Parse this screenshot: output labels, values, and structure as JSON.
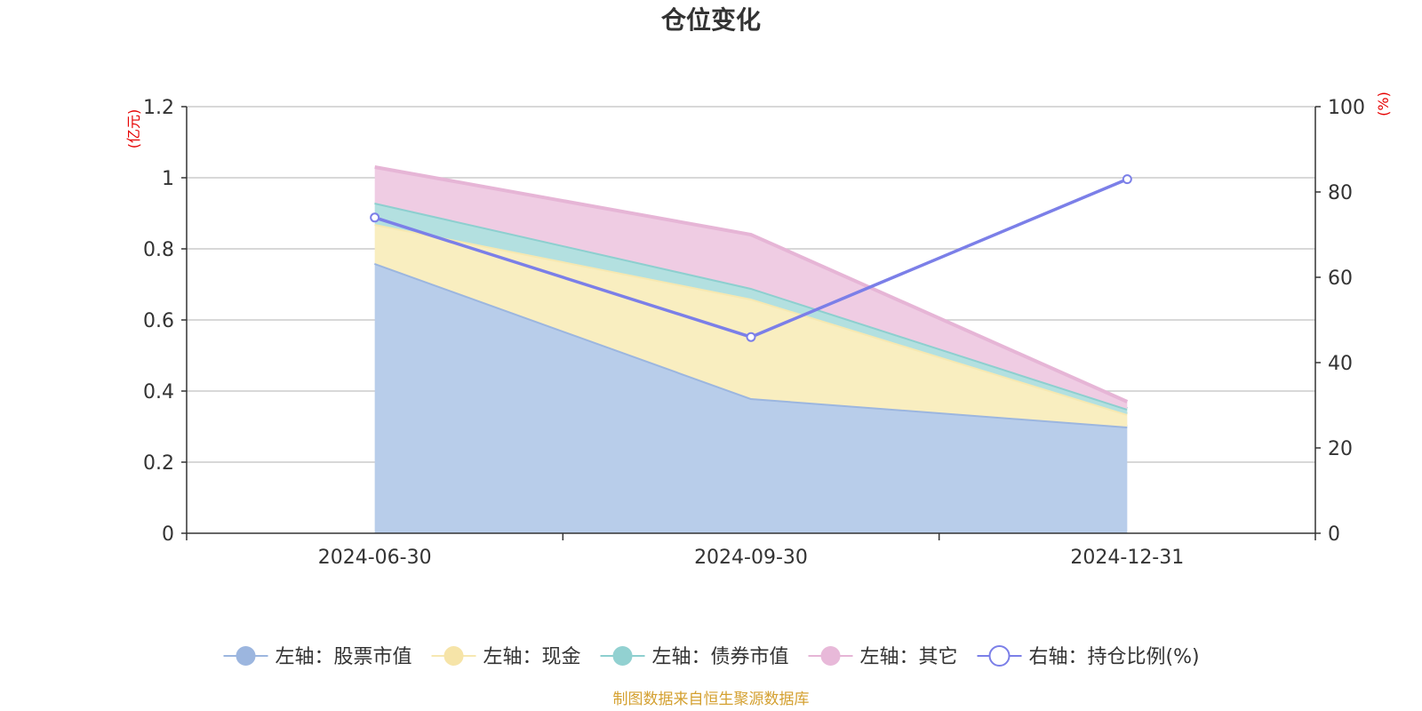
{
  "chart_data": {
    "type": "area",
    "title": "仓位变化",
    "categories": [
      "2024-06-30",
      "2024-09-30",
      "2024-12-31"
    ],
    "left_axis": {
      "unit": "(亿元)",
      "ylim": [
        0,
        1.2
      ],
      "ticks": [
        "0",
        "0.2",
        "0.4",
        "0.6",
        "0.8",
        "1",
        "1.2"
      ]
    },
    "right_axis": {
      "unit": "(%)",
      "ylim": [
        0,
        100
      ],
      "ticks": [
        "0",
        "20",
        "40",
        "60",
        "80",
        "100"
      ]
    },
    "stacked_series": [
      {
        "name": "股票市值",
        "legend": "左轴：股票市值",
        "values": [
          0.76,
          0.38,
          0.3
        ],
        "fill": "#b8cdea",
        "line": "#9cb6df",
        "marker": "#9cb6df"
      },
      {
        "name": "现金",
        "legend": "左轴：现金",
        "values": [
          0.11,
          0.28,
          0.035
        ],
        "fill": "#f9eec0",
        "line": "#f6e8b1",
        "marker": "#f6e4a8"
      },
      {
        "name": "债券市值",
        "legend": "左轴：债券市值",
        "values": [
          0.06,
          0.03,
          0.015
        ],
        "fill": "#b3e0e0",
        "line": "#8dcfcf",
        "marker": "#92d1d1"
      },
      {
        "name": "其它",
        "legend": "左轴：其它",
        "values": [
          0.1,
          0.15,
          0.02
        ],
        "fill": "#efcce3",
        "line": "#e6b5d6",
        "marker": "#e8b9d9"
      }
    ],
    "line_series": {
      "name": "持仓比例(%)",
      "legend": "右轴：持仓比例(%)",
      "values": [
        74,
        46,
        83
      ],
      "color": "#7b7fe8"
    },
    "grid": true,
    "legend_position": "bottom"
  },
  "colors": {
    "axis": "#333333",
    "grid": "#cccccc",
    "unit": "#e60000",
    "source": "#d4a030"
  },
  "source_note": "制图数据来自恒生聚源数据库"
}
